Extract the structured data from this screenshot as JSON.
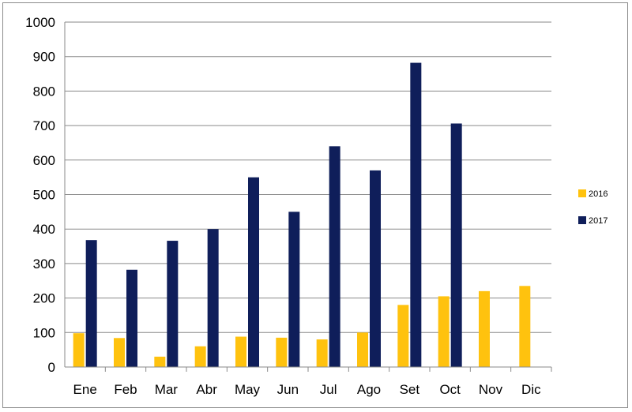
{
  "chart_data": {
    "type": "bar",
    "categories": [
      "Ene",
      "Feb",
      "Mar",
      "Abr",
      "May",
      "Jun",
      "Jul",
      "Ago",
      "Set",
      "Oct",
      "Nov",
      "Dic"
    ],
    "series": [
      {
        "name": "2016",
        "color": "#FFC20E",
        "values": [
          98,
          84,
          30,
          60,
          88,
          85,
          80,
          100,
          180,
          205,
          220,
          235
        ]
      },
      {
        "name": "2017",
        "color": "#0F1E5A",
        "values": [
          368,
          282,
          366,
          400,
          550,
          450,
          640,
          570,
          882,
          706,
          null,
          null
        ]
      }
    ],
    "title": "",
    "xlabel": "",
    "ylabel": "",
    "ylim": [
      0,
      1000
    ],
    "yticks": [
      0,
      100,
      200,
      300,
      400,
      500,
      600,
      700,
      800,
      900,
      1000
    ],
    "grid": true,
    "legend_position": "right"
  }
}
